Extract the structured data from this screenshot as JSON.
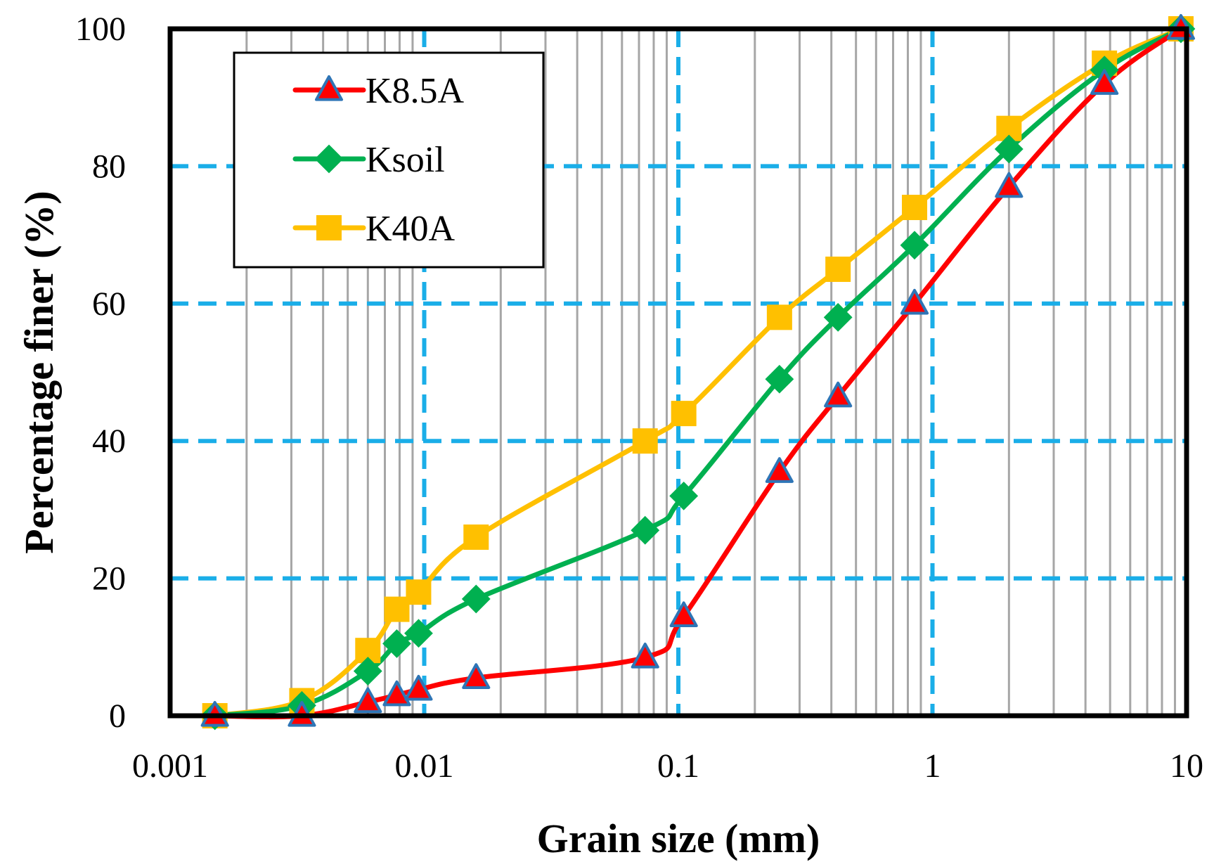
{
  "chart_data": {
    "type": "line",
    "xscale": "log",
    "xlim": [
      0.001,
      10
    ],
    "ylim": [
      0,
      100
    ],
    "xlabel": "Grain size (mm)",
    "ylabel": "Percentage finer (%)",
    "x_ticks": [
      {
        "value": 0.001,
        "label": "0.001"
      },
      {
        "value": 0.01,
        "label": "0.01"
      },
      {
        "value": 0.1,
        "label": "0.1"
      },
      {
        "value": 1,
        "label": "1"
      },
      {
        "value": 10,
        "label": "10"
      }
    ],
    "y_ticks": [
      {
        "value": 0,
        "label": "0"
      },
      {
        "value": 20,
        "label": "20"
      },
      {
        "value": 40,
        "label": "40"
      },
      {
        "value": 60,
        "label": "60"
      },
      {
        "value": 80,
        "label": "80"
      },
      {
        "value": 100,
        "label": "100"
      }
    ],
    "grid": {
      "major": true,
      "minor": true,
      "major_color": "#1aaee8",
      "minor_color": "#a6a6a6"
    },
    "legend": {
      "position": "top-left"
    },
    "series": [
      {
        "name": "K8.5A",
        "color": "#ff0000",
        "marker": "triangle",
        "marker_fill": "#ff0000",
        "marker_edge": "#2e75b6",
        "x": [
          0.0015,
          0.0033,
          0.006,
          0.0078,
          0.0095,
          0.016,
          0.074,
          0.105,
          0.25,
          0.425,
          0.85,
          2.0,
          4.75,
          9.5
        ],
        "y": [
          0,
          0,
          2,
          3,
          3.8,
          5.5,
          8.5,
          14.5,
          35.5,
          46.5,
          60,
          77,
          92,
          100
        ]
      },
      {
        "name": "Ksoil",
        "color": "#00b050",
        "marker": "diamond",
        "marker_fill": "#00b050",
        "marker_edge": "#00b050",
        "x": [
          0.0015,
          0.0033,
          0.006,
          0.0078,
          0.0095,
          0.016,
          0.074,
          0.105,
          0.25,
          0.425,
          0.85,
          2.0,
          4.75,
          9.5
        ],
        "y": [
          0,
          1.5,
          6.5,
          10.5,
          12,
          17,
          27,
          32,
          49,
          58,
          68.5,
          82.5,
          94,
          100
        ]
      },
      {
        "name": "K40A",
        "color": "#ffc000",
        "marker": "square",
        "marker_fill": "#ffc000",
        "marker_edge": "#ffc000",
        "x": [
          0.0015,
          0.0033,
          0.006,
          0.0078,
          0.0095,
          0.016,
          0.074,
          0.105,
          0.25,
          0.425,
          0.85,
          2.0,
          4.75,
          9.5
        ],
        "y": [
          0,
          2.2,
          9.5,
          15.5,
          18,
          26,
          40,
          44,
          58,
          65,
          74,
          85.5,
          95,
          100
        ]
      }
    ]
  }
}
